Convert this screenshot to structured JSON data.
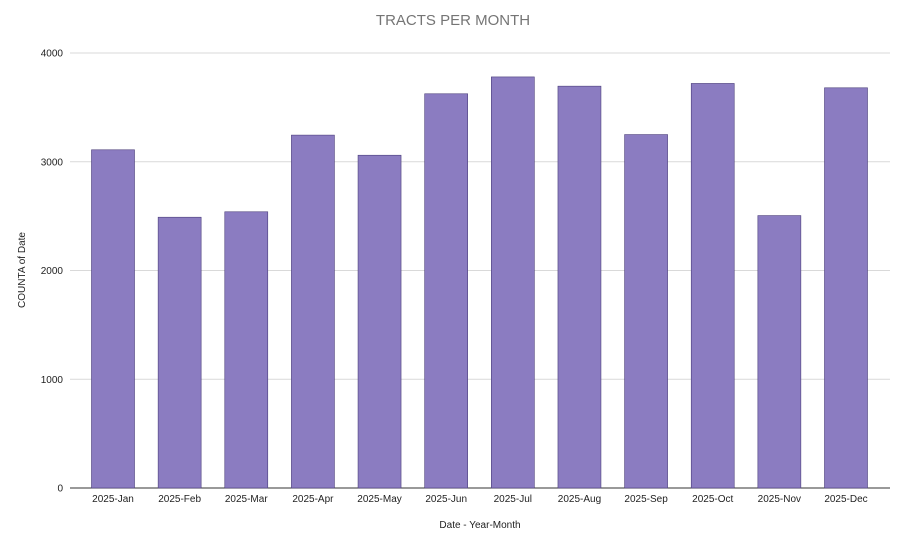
{
  "chart_data": {
    "type": "bar",
    "title": "TRACTS PER MONTH",
    "xlabel": "Date - Year-Month",
    "ylabel": "COUNTA of Date",
    "categories": [
      "2025-Jan",
      "2025-Feb",
      "2025-Mar",
      "2025-Apr",
      "2025-May",
      "2025-Jun",
      "2025-Jul",
      "2025-Aug",
      "2025-Sep",
      "2025-Oct",
      "2025-Nov",
      "2025-Dec"
    ],
    "values": [
      3110,
      2490,
      2540,
      3245,
      3060,
      3625,
      3780,
      3695,
      3250,
      3720,
      2505,
      3680
    ],
    "ylim": [
      0,
      4000
    ],
    "yticks": [
      "0",
      "1000",
      "2000",
      "3000",
      "4000"
    ],
    "grid": true,
    "legend": "none",
    "bar_color": "#8b7cc1"
  }
}
